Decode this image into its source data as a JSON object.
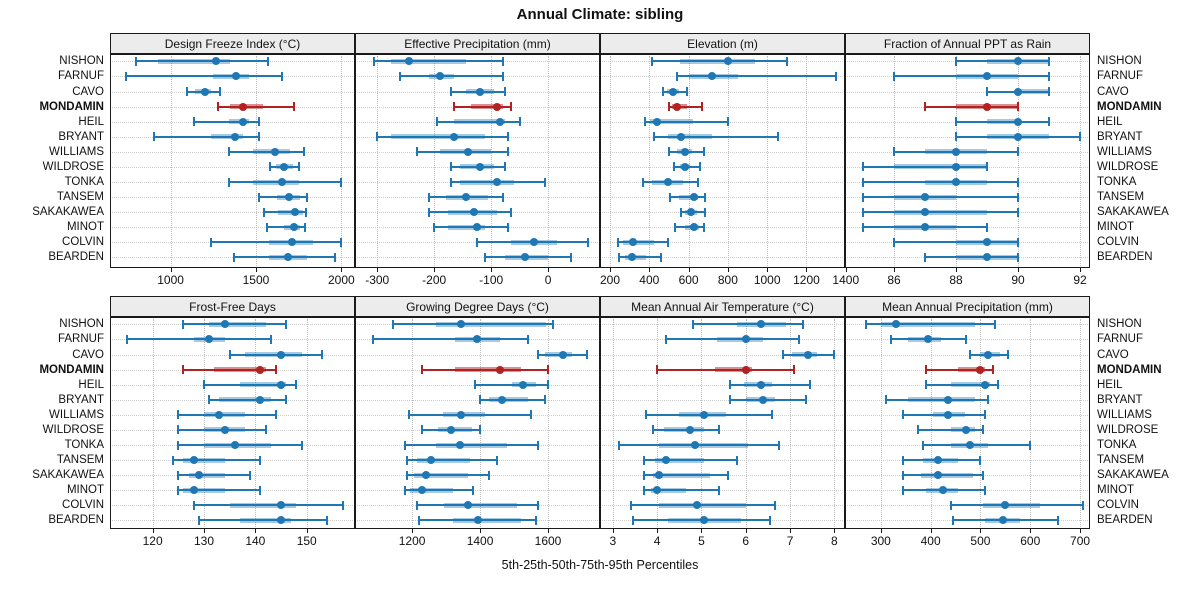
{
  "title": "Annual Climate: sibling",
  "footer": "5th-25th-50th-75th-95th Percentiles",
  "highlight_station": "MONDAMIN",
  "colors": {
    "series_blue": "#1f77b4",
    "series_blue_band": "rgba(31,119,180,0.40)",
    "highlight_red": "#b22222",
    "highlight_red_band": "rgba(178,34,34,0.50)",
    "header_bg": "#ececec",
    "panel_border": "#1a1a1a",
    "gridline": "#bdbdbd"
  },
  "stations": [
    "NISHON",
    "FARNUF",
    "CAVO",
    "MONDAMIN",
    "HEIL",
    "BRYANT",
    "WILLIAMS",
    "WILDROSE",
    "TONKA",
    "TANSEM",
    "SAKAKAWEA",
    "MINOT",
    "COLVIN",
    "BEARDEN"
  ],
  "chart_data": {
    "type": "trellis-percentile-dot-interval",
    "percentile_labels": [
      "5th",
      "25th",
      "50th",
      "75th",
      "95th"
    ],
    "grid": "dotted",
    "panels": [
      {
        "title": "Design Freeze Index (°C)",
        "row": 0,
        "col": 0,
        "domain": [
          645,
          2080
        ],
        "ticks": [
          1000,
          1500,
          2000
        ],
        "values": [
          [
            795,
            925,
            1265,
            1350,
            1570
          ],
          [
            740,
            1250,
            1385,
            1460,
            1655
          ],
          [
            1095,
            1145,
            1200,
            1235,
            1290
          ],
          [
            1275,
            1350,
            1425,
            1540,
            1725
          ],
          [
            1135,
            1340,
            1425,
            1460,
            1520
          ],
          [
            905,
            1235,
            1380,
            1425,
            1520
          ],
          [
            1340,
            1480,
            1610,
            1700,
            1780
          ],
          [
            1580,
            1620,
            1665,
            1715,
            1750
          ],
          [
            1340,
            1480,
            1650,
            1755,
            2000
          ],
          [
            1520,
            1625,
            1695,
            1755,
            1800
          ],
          [
            1545,
            1630,
            1730,
            1775,
            1795
          ],
          [
            1565,
            1665,
            1720,
            1760,
            1790
          ],
          [
            1235,
            1575,
            1710,
            1835,
            2000
          ],
          [
            1370,
            1575,
            1690,
            1800,
            1965
          ]
        ]
      },
      {
        "title": "Effective Precipitation (mm)",
        "row": 0,
        "col": 1,
        "domain": [
          -339,
          91
        ],
        "ticks": [
          -300,
          -200,
          -100,
          0
        ],
        "values": [
          [
            -305,
            -275,
            -245,
            -145,
            -80
          ],
          [
            -260,
            -210,
            -190,
            -165,
            -80
          ],
          [
            -170,
            -145,
            -120,
            -95,
            -75
          ],
          [
            -165,
            -135,
            -90,
            -80,
            -65
          ],
          [
            -195,
            -165,
            -85,
            -75,
            -50
          ],
          [
            -300,
            -275,
            -165,
            -110,
            -70
          ],
          [
            -230,
            -190,
            -140,
            -100,
            -70
          ],
          [
            -170,
            -155,
            -120,
            -95,
            -75
          ],
          [
            -170,
            -155,
            -90,
            -60,
            -5
          ],
          [
            -210,
            -180,
            -145,
            -105,
            -80
          ],
          [
            -210,
            -175,
            -130,
            -90,
            -65
          ],
          [
            -200,
            -175,
            -125,
            -110,
            -70
          ],
          [
            -125,
            -65,
            -25,
            15,
            70
          ],
          [
            -110,
            -75,
            -40,
            0,
            40
          ]
        ]
      },
      {
        "title": "Elevation (m)",
        "row": 0,
        "col": 2,
        "domain": [
          149,
          1396
        ],
        "ticks": [
          200,
          400,
          600,
          800,
          1000,
          1200,
          1400
        ],
        "values": [
          [
            415,
            555,
            800,
            940,
            1100
          ],
          [
            540,
            600,
            720,
            850,
            1350
          ],
          [
            470,
            490,
            520,
            550,
            590
          ],
          [
            500,
            515,
            540,
            590,
            670
          ],
          [
            380,
            405,
            440,
            620,
            800
          ],
          [
            425,
            495,
            560,
            720,
            1055
          ],
          [
            500,
            540,
            580,
            615,
            680
          ],
          [
            525,
            555,
            580,
            605,
            660
          ],
          [
            370,
            415,
            495,
            570,
            650
          ],
          [
            505,
            550,
            625,
            650,
            685
          ],
          [
            560,
            580,
            610,
            645,
            685
          ],
          [
            530,
            580,
            625,
            655,
            680
          ],
          [
            240,
            265,
            315,
            425,
            495
          ],
          [
            245,
            275,
            310,
            385,
            460
          ]
        ]
      },
      {
        "title": "Fraction of Annual PPT as Rain",
        "row": 0,
        "col": 3,
        "domain": [
          84.42,
          92.32
        ],
        "ticks": [
          86,
          88,
          90,
          92
        ],
        "values": [
          [
            88,
            89,
            90,
            91,
            91
          ],
          [
            86,
            88,
            89,
            90,
            91
          ],
          [
            89,
            90,
            90,
            91,
            91
          ],
          [
            87,
            88,
            89,
            90,
            90
          ],
          [
            88,
            89,
            90,
            90,
            91
          ],
          [
            88,
            89,
            90,
            91,
            92
          ],
          [
            86,
            87,
            88,
            89,
            90
          ],
          [
            85,
            86,
            88,
            89,
            89
          ],
          [
            85,
            87,
            88,
            89,
            90
          ],
          [
            85,
            86,
            87,
            88,
            90
          ],
          [
            85,
            86,
            87,
            89,
            90
          ],
          [
            85,
            86,
            87,
            88,
            89
          ],
          [
            86,
            88,
            89,
            90,
            90
          ],
          [
            87,
            88,
            89,
            90,
            90
          ]
        ]
      },
      {
        "title": "Frost-Free Days",
        "row": 1,
        "col": 0,
        "domain": [
          111.7,
          159.4
        ],
        "ticks": [
          120,
          130,
          140,
          150
        ],
        "values": [
          [
            126,
            131,
            134,
            142,
            146
          ],
          [
            115,
            128,
            131,
            134,
            143
          ],
          [
            135,
            138,
            145,
            149,
            153
          ],
          [
            126,
            132,
            141,
            142,
            144
          ],
          [
            130,
            137,
            145,
            146,
            148
          ],
          [
            131,
            133,
            141,
            143,
            146
          ],
          [
            125,
            130,
            133,
            138,
            144
          ],
          [
            125,
            130,
            134,
            138,
            142
          ],
          [
            125,
            130,
            136,
            143,
            149
          ],
          [
            124,
            126,
            128,
            134,
            141
          ],
          [
            125,
            127,
            129,
            134,
            139
          ],
          [
            125,
            126,
            128,
            134,
            141
          ],
          [
            128,
            135,
            145,
            148,
            157
          ],
          [
            129,
            137,
            145,
            147,
            154
          ]
        ]
      },
      {
        "title": "Growing Degree Days (°C)",
        "row": 1,
        "col": 1,
        "domain": [
          1032,
          1753
        ],
        "ticks": [
          1200,
          1400,
          1600
        ],
        "values": [
          [
            1145,
            1270,
            1345,
            1595,
            1615
          ],
          [
            1085,
            1325,
            1390,
            1460,
            1540
          ],
          [
            1570,
            1590,
            1645,
            1670,
            1715
          ],
          [
            1230,
            1325,
            1460,
            1520,
            1600
          ],
          [
            1385,
            1495,
            1525,
            1565,
            1600
          ],
          [
            1400,
            1425,
            1465,
            1540,
            1590
          ],
          [
            1190,
            1290,
            1345,
            1415,
            1550
          ],
          [
            1230,
            1275,
            1315,
            1375,
            1400
          ],
          [
            1180,
            1270,
            1340,
            1480,
            1570
          ],
          [
            1185,
            1215,
            1255,
            1370,
            1450
          ],
          [
            1185,
            1205,
            1240,
            1365,
            1425
          ],
          [
            1180,
            1195,
            1230,
            1320,
            1380
          ],
          [
            1215,
            1295,
            1365,
            1510,
            1570
          ],
          [
            1220,
            1320,
            1395,
            1520,
            1565
          ]
        ]
      },
      {
        "title": "Mean Annual Air Temperature (°C)",
        "row": 1,
        "col": 2,
        "domain": [
          2.71,
          8.24
        ],
        "ticks": [
          3,
          4,
          5,
          6,
          7,
          8
        ],
        "values": [
          [
            4.8,
            5.8,
            6.35,
            6.9,
            7.3
          ],
          [
            4.2,
            5.35,
            6.0,
            6.4,
            7.2
          ],
          [
            6.85,
            7.05,
            7.4,
            7.6,
            8.0
          ],
          [
            4.0,
            5.3,
            6.0,
            6.15,
            7.1
          ],
          [
            5.65,
            5.95,
            6.35,
            6.6,
            7.45
          ],
          [
            5.65,
            6.0,
            6.4,
            6.65,
            7.35
          ],
          [
            3.75,
            4.5,
            5.05,
            5.55,
            6.6
          ],
          [
            3.9,
            4.15,
            4.75,
            5.05,
            5.4
          ],
          [
            3.15,
            4.05,
            4.85,
            6.05,
            6.75
          ],
          [
            3.7,
            3.95,
            4.2,
            5.05,
            5.8
          ],
          [
            3.7,
            3.9,
            4.05,
            5.2,
            5.6
          ],
          [
            3.7,
            3.85,
            4.0,
            4.65,
            5.4
          ],
          [
            3.4,
            4.05,
            4.9,
            6.0,
            6.65
          ],
          [
            3.45,
            4.25,
            5.05,
            5.9,
            6.55
          ]
        ]
      },
      {
        "title": "Mean Annual Precipitation (mm)",
        "row": 1,
        "col": 3,
        "domain": [
          228,
          720
        ],
        "ticks": [
          300,
          400,
          500,
          600,
          700
        ],
        "values": [
          [
            270,
            300,
            330,
            490,
            530
          ],
          [
            320,
            355,
            395,
            420,
            470
          ],
          [
            480,
            500,
            515,
            540,
            555
          ],
          [
            390,
            455,
            500,
            510,
            525
          ],
          [
            390,
            440,
            510,
            520,
            535
          ],
          [
            310,
            355,
            435,
            490,
            515
          ],
          [
            345,
            405,
            435,
            470,
            510
          ],
          [
            375,
            440,
            470,
            490,
            505
          ],
          [
            385,
            440,
            480,
            515,
            600
          ],
          [
            345,
            385,
            415,
            455,
            500
          ],
          [
            345,
            380,
            415,
            485,
            505
          ],
          [
            345,
            390,
            425,
            455,
            510
          ],
          [
            440,
            505,
            550,
            620,
            705
          ],
          [
            445,
            510,
            545,
            580,
            655
          ]
        ]
      }
    ]
  }
}
